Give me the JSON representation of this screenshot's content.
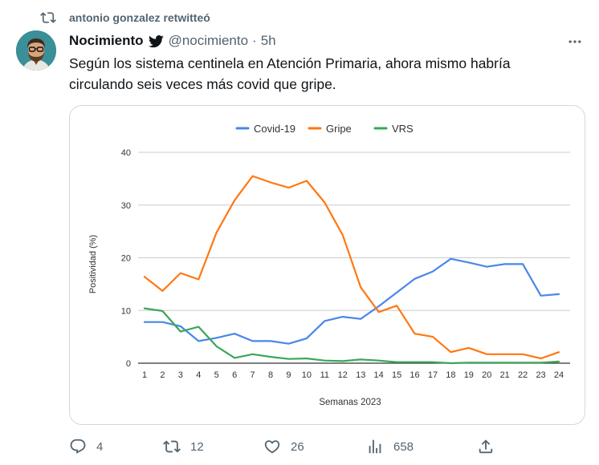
{
  "retweet": {
    "label": "antonio gonzalez retwitteó"
  },
  "tweet": {
    "author_name": "Nocimiento",
    "handle": "@nocimiento",
    "separator": "·",
    "time": "5h",
    "text": "Según los sistema centinela en Atención Primaria, ahora mismo habría circulando seis veces más covid que gripe."
  },
  "actions": {
    "replies": "4",
    "retweets": "12",
    "likes": "26",
    "views": "658"
  },
  "colors": {
    "covid": "#4a86e8",
    "gripe": "#ff7711",
    "vrs": "#3aa757",
    "text_secondary": "#536471"
  },
  "chart_data": {
    "type": "line",
    "xlabel": "Semanas 2023",
    "ylabel": "Positividad (%)",
    "ylim": [
      0,
      40
    ],
    "yticks": [
      0,
      10,
      20,
      30,
      40
    ],
    "legend_position": "top",
    "grid": true,
    "x": [
      1,
      2,
      3,
      4,
      5,
      6,
      7,
      8,
      9,
      10,
      11,
      12,
      13,
      14,
      15,
      16,
      17,
      18,
      19,
      20,
      21,
      22,
      23,
      24
    ],
    "series": [
      {
        "name": "Covid-19",
        "color": "#4a86e8",
        "values": [
          7.8,
          7.8,
          7.0,
          4.2,
          4.8,
          5.6,
          4.2,
          4.2,
          3.7,
          4.7,
          8.0,
          8.8,
          8.4,
          10.8,
          13.4,
          16.0,
          17.4,
          19.8,
          19.1,
          18.3,
          18.8,
          18.8,
          12.8,
          13.1
        ]
      },
      {
        "name": "Gripe",
        "color": "#ff7711",
        "values": [
          16.4,
          13.7,
          17.1,
          15.9,
          24.8,
          30.9,
          35.5,
          34.3,
          33.3,
          34.6,
          30.5,
          24.3,
          14.4,
          9.7,
          10.9,
          5.6,
          5.0,
          2.1,
          2.9,
          1.7,
          1.7,
          1.7,
          0.9,
          2.1
        ]
      },
      {
        "name": "VRS",
        "color": "#3aa757",
        "values": [
          10.4,
          9.9,
          6.0,
          6.9,
          3.2,
          1.0,
          1.7,
          1.2,
          0.8,
          0.9,
          0.5,
          0.4,
          0.7,
          0.5,
          0.2,
          0.2,
          0.2,
          0.0,
          0.1,
          0.1,
          0.1,
          0.1,
          0.1,
          0.3
        ]
      }
    ]
  }
}
